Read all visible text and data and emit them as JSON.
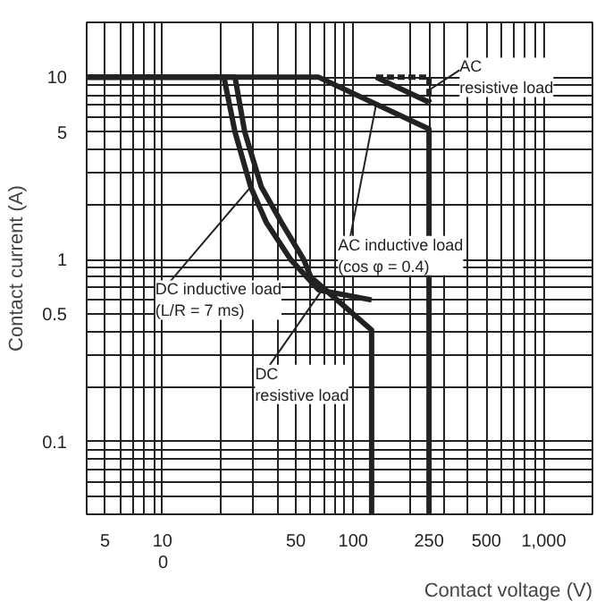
{
  "chart_data": {
    "type": "line",
    "xlabel": "Contact voltage (V)",
    "ylabel": "Contact current (A)",
    "log": "xy",
    "grid": true,
    "xlim": [
      4,
      1800
    ],
    "ylim": [
      0.04,
      20
    ],
    "xticks": [
      5,
      {
        "value": 6,
        "label": null
      },
      {
        "value": 7,
        "label": null
      },
      {
        "value": 8,
        "label": null
      },
      {
        "value": 9,
        "label": null
      },
      10,
      {
        "value": 20,
        "label": null
      },
      {
        "value": 30,
        "label": null
      },
      {
        "value": 40,
        "label": null
      },
      50,
      {
        "value": 60,
        "label": null
      },
      {
        "value": 70,
        "label": null
      },
      {
        "value": 80,
        "label": null
      },
      {
        "value": 90,
        "label": null
      },
      100,
      {
        "value": 200,
        "label": null
      },
      250,
      {
        "value": 300,
        "label": null
      },
      {
        "value": 400,
        "label": null
      },
      500,
      {
        "value": 600,
        "label": null
      },
      {
        "value": 700,
        "label": null
      },
      {
        "value": 800,
        "label": null
      },
      {
        "value": 900,
        "label": null
      },
      {
        "value": 1000,
        "label": "1,000"
      }
    ],
    "yticks": [
      {
        "value": 0.05,
        "label": null
      },
      {
        "value": 0.06,
        "label": null
      },
      {
        "value": 0.07,
        "label": null
      },
      {
        "value": 0.08,
        "label": null
      },
      {
        "value": 0.09,
        "label": null
      },
      0.1,
      {
        "value": 0.2,
        "label": null
      },
      {
        "value": 0.3,
        "label": null
      },
      {
        "value": 0.4,
        "label": null
      },
      0.5,
      {
        "value": 0.6,
        "label": null
      },
      {
        "value": 0.7,
        "label": null
      },
      {
        "value": 0.8,
        "label": null
      },
      {
        "value": 0.9,
        "label": null
      },
      1,
      {
        "value": 2,
        "label": null
      },
      {
        "value": 3,
        "label": null
      },
      {
        "value": 4,
        "label": null
      },
      5,
      {
        "value": 6,
        "label": null
      },
      {
        "value": 7,
        "label": null
      },
      {
        "value": 8,
        "label": null
      },
      {
        "value": 9,
        "label": null
      },
      10
    ],
    "series": [
      {
        "color": "#222222",
        "line_style": "solid",
        "x": [
          4,
          21,
          24,
          29,
          35,
          47,
          66,
          125
        ],
        "values": [
          10,
          10,
          5,
          2.5,
          1.6,
          1,
          0.68,
          0.6
        ]
      },
      {
        "color": "#222222",
        "line_style": "solid",
        "x": [
          4,
          24,
          27,
          33,
          42,
          55,
          60,
          125,
          125
        ],
        "values": [
          10,
          10,
          5,
          2.5,
          1.6,
          1,
          0.8,
          0.41,
          0.04
        ]
      },
      {
        "color": "#222222",
        "line_style": "solid",
        "x": [
          4,
          66,
          250,
          250
        ],
        "values": [
          10,
          10,
          5.2,
          0.04
        ]
      },
      {
        "color": "#222222",
        "line_style": "solid",
        "x": [
          132,
          250
        ],
        "values": [
          10,
          7.3
        ]
      },
      {
        "color": "#222222",
        "line_style": "dashed",
        "x": [
          132,
          250,
          250
        ],
        "values": [
          10,
          10,
          7.3
        ]
      }
    ],
    "annotations": [
      "0",
      {
        "text": "DC inductive load\n(L/R = 7 ms)",
        "x": 29,
        "y": 2.5
      },
      {
        "text": "DC\nresistive load",
        "x": 70,
        "y": 0.7
      },
      {
        "text": "AC inductive load\n(cos φ = 0.4)",
        "x": 132,
        "y": 7.1
      },
      {
        "text": "AC\nresistive load",
        "x": 250,
        "y": 8.5
      }
    ]
  }
}
